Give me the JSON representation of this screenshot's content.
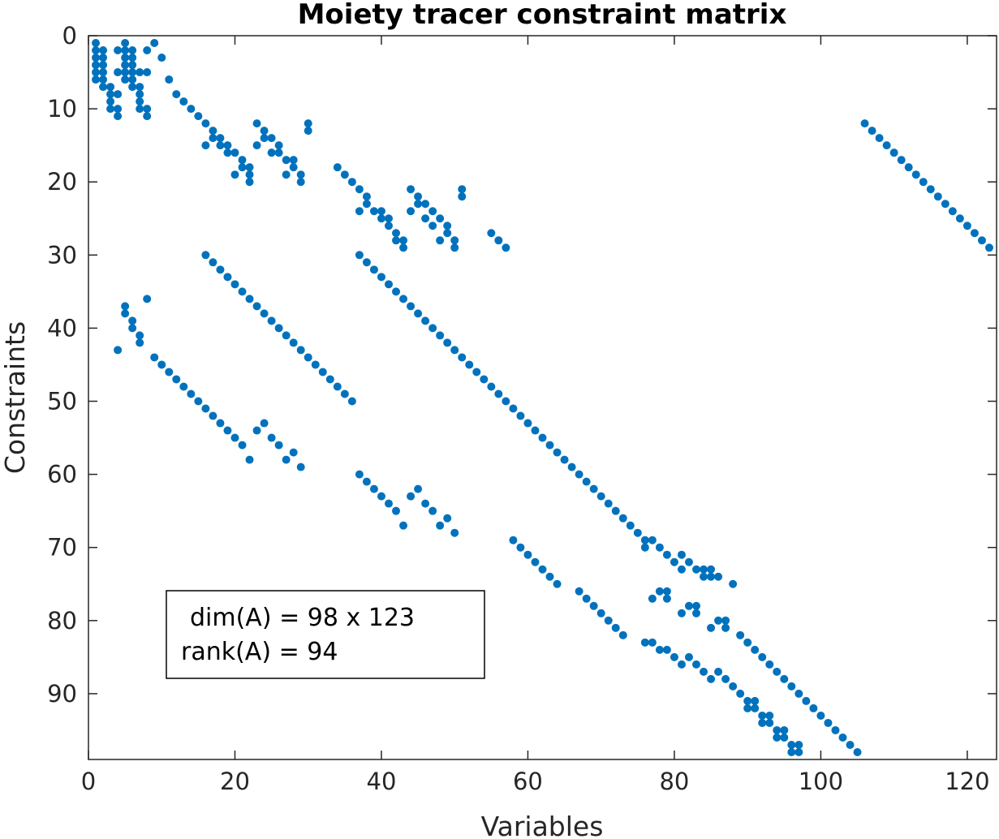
{
  "chart_data": {
    "type": "scatter",
    "subtype": "sparsity-pattern",
    "title": "Moiety tracer constraint matrix",
    "xlabel": "Variables",
    "ylabel": "Constraints",
    "xlim": [
      0,
      124
    ],
    "ylim": [
      0,
      99
    ],
    "y_reversed": true,
    "xticks": [
      0,
      20,
      40,
      60,
      80,
      100,
      120
    ],
    "yticks": [
      0,
      10,
      20,
      30,
      40,
      50,
      60,
      70,
      80,
      90
    ],
    "marker_color": "#0072bd",
    "grid": false,
    "annotation": {
      "line1": "dim(A) = 98 x 123",
      "line2": "rank(A) = 94"
    },
    "nonzeros": [
      [
        1,
        1
      ],
      [
        1,
        2
      ],
      [
        1,
        3
      ],
      [
        1,
        4
      ],
      [
        1,
        5
      ],
      [
        1,
        6
      ],
      [
        2,
        2
      ],
      [
        2,
        3
      ],
      [
        2,
        4
      ],
      [
        2,
        5
      ],
      [
        2,
        6
      ],
      [
        2,
        7
      ],
      [
        3,
        7
      ],
      [
        3,
        8
      ],
      [
        3,
        9
      ],
      [
        3,
        10
      ],
      [
        4,
        2
      ],
      [
        4,
        5
      ],
      [
        4,
        8
      ],
      [
        4,
        10
      ],
      [
        4,
        11
      ],
      [
        4,
        43
      ],
      [
        5,
        1
      ],
      [
        5,
        2
      ],
      [
        5,
        3
      ],
      [
        5,
        4
      ],
      [
        5,
        5
      ],
      [
        5,
        6
      ],
      [
        5,
        37
      ],
      [
        5,
        38
      ],
      [
        6,
        2
      ],
      [
        6,
        3
      ],
      [
        6,
        4
      ],
      [
        6,
        5
      ],
      [
        6,
        6
      ],
      [
        6,
        7
      ],
      [
        6,
        39
      ],
      [
        6,
        40
      ],
      [
        7,
        5
      ],
      [
        7,
        7
      ],
      [
        7,
        8
      ],
      [
        7,
        9
      ],
      [
        7,
        10
      ],
      [
        7,
        41
      ],
      [
        7,
        42
      ],
      [
        8,
        2
      ],
      [
        8,
        5
      ],
      [
        8,
        10
      ],
      [
        8,
        11
      ],
      [
        8,
        36
      ],
      [
        9,
        1
      ],
      [
        10,
        3
      ],
      [
        11,
        6
      ],
      [
        12,
        8
      ],
      [
        13,
        9
      ],
      [
        14,
        10
      ],
      [
        15,
        11
      ],
      [
        16,
        12
      ],
      [
        17,
        13
      ],
      [
        16,
        15
      ],
      [
        17,
        14
      ],
      [
        18,
        15
      ],
      [
        18,
        14
      ],
      [
        19,
        16
      ],
      [
        19,
        15
      ],
      [
        20,
        16
      ],
      [
        20,
        19
      ],
      [
        21,
        17
      ],
      [
        21,
        18
      ],
      [
        22,
        19
      ],
      [
        22,
        18
      ],
      [
        22,
        20
      ],
      [
        23,
        12
      ],
      [
        23,
        15
      ],
      [
        24,
        14
      ],
      [
        24,
        13
      ],
      [
        25,
        14
      ],
      [
        25,
        16
      ],
      [
        26,
        15
      ],
      [
        26,
        16
      ],
      [
        27,
        17
      ],
      [
        27,
        19
      ],
      [
        28,
        17
      ],
      [
        28,
        18
      ],
      [
        29,
        19
      ],
      [
        29,
        20
      ],
      [
        30,
        12
      ],
      [
        30,
        13
      ],
      [
        34,
        18
      ],
      [
        35,
        19
      ],
      [
        36,
        20
      ],
      [
        37,
        21
      ],
      [
        37,
        24
      ],
      [
        38,
        22
      ],
      [
        38,
        23
      ],
      [
        39,
        24
      ],
      [
        40,
        24
      ],
      [
        40,
        25
      ],
      [
        41,
        25
      ],
      [
        41,
        26
      ],
      [
        42,
        27
      ],
      [
        42,
        28
      ],
      [
        43,
        28
      ],
      [
        43,
        29
      ],
      [
        44,
        21
      ],
      [
        44,
        24
      ],
      [
        45,
        22
      ],
      [
        45,
        23
      ],
      [
        46,
        23
      ],
      [
        46,
        25
      ],
      [
        47,
        24
      ],
      [
        47,
        26
      ],
      [
        48,
        25
      ],
      [
        48,
        28
      ],
      [
        49,
        26
      ],
      [
        49,
        27
      ],
      [
        50,
        28
      ],
      [
        50,
        29
      ],
      [
        51,
        21
      ],
      [
        51,
        22
      ],
      [
        55,
        27
      ],
      [
        56,
        28
      ],
      [
        57,
        29
      ],
      [
        16,
        30
      ],
      [
        17,
        31
      ],
      [
        18,
        32
      ],
      [
        19,
        33
      ],
      [
        20,
        34
      ],
      [
        21,
        35
      ],
      [
        22,
        36
      ],
      [
        23,
        37
      ],
      [
        24,
        38
      ],
      [
        25,
        39
      ],
      [
        26,
        40
      ],
      [
        27,
        41
      ],
      [
        28,
        42
      ],
      [
        29,
        43
      ],
      [
        30,
        44
      ],
      [
        31,
        45
      ],
      [
        32,
        46
      ],
      [
        33,
        47
      ],
      [
        34,
        48
      ],
      [
        35,
        49
      ],
      [
        36,
        50
      ],
      [
        37,
        30
      ],
      [
        38,
        31
      ],
      [
        39,
        32
      ],
      [
        40,
        33
      ],
      [
        41,
        34
      ],
      [
        42,
        35
      ],
      [
        43,
        36
      ],
      [
        44,
        37
      ],
      [
        45,
        38
      ],
      [
        46,
        39
      ],
      [
        47,
        40
      ],
      [
        48,
        41
      ],
      [
        49,
        42
      ],
      [
        50,
        43
      ],
      [
        51,
        44
      ],
      [
        52,
        45
      ],
      [
        53,
        46
      ],
      [
        54,
        47
      ],
      [
        55,
        48
      ],
      [
        56,
        49
      ],
      [
        57,
        50
      ],
      [
        58,
        51
      ],
      [
        59,
        52
      ],
      [
        60,
        53
      ],
      [
        61,
        54
      ],
      [
        62,
        55
      ],
      [
        63,
        56
      ],
      [
        64,
        57
      ],
      [
        65,
        58
      ],
      [
        66,
        59
      ],
      [
        67,
        60
      ],
      [
        68,
        61
      ],
      [
        69,
        62
      ],
      [
        70,
        63
      ],
      [
        71,
        64
      ],
      [
        72,
        65
      ],
      [
        73,
        66
      ],
      [
        74,
        67
      ],
      [
        75,
        68
      ],
      [
        76,
        69
      ],
      [
        76,
        70
      ],
      [
        77,
        69
      ],
      [
        78,
        70
      ],
      [
        79,
        71
      ],
      [
        80,
        72
      ],
      [
        81,
        71
      ],
      [
        81,
        73
      ],
      [
        82,
        72
      ],
      [
        83,
        73
      ],
      [
        84,
        74
      ],
      [
        84,
        73
      ],
      [
        85,
        74
      ],
      [
        85,
        73
      ],
      [
        86,
        74
      ],
      [
        88,
        75
      ],
      [
        106,
        12
      ],
      [
        107,
        13
      ],
      [
        108,
        14
      ],
      [
        109,
        15
      ],
      [
        110,
        16
      ],
      [
        111,
        17
      ],
      [
        112,
        18
      ],
      [
        113,
        19
      ],
      [
        114,
        20
      ],
      [
        115,
        21
      ],
      [
        116,
        22
      ],
      [
        117,
        23
      ],
      [
        118,
        24
      ],
      [
        119,
        25
      ],
      [
        120,
        26
      ],
      [
        121,
        27
      ],
      [
        122,
        28
      ],
      [
        123,
        29
      ],
      [
        9,
        44
      ],
      [
        10,
        45
      ],
      [
        11,
        46
      ],
      [
        12,
        47
      ],
      [
        13,
        48
      ],
      [
        14,
        49
      ],
      [
        15,
        50
      ],
      [
        16,
        51
      ],
      [
        17,
        52
      ],
      [
        18,
        53
      ],
      [
        19,
        54
      ],
      [
        20,
        55
      ],
      [
        21,
        56
      ],
      [
        22,
        58
      ],
      [
        23,
        54
      ],
      [
        24,
        53
      ],
      [
        25,
        55
      ],
      [
        26,
        56
      ],
      [
        27,
        58
      ],
      [
        28,
        57
      ],
      [
        29,
        59
      ],
      [
        37,
        60
      ],
      [
        38,
        61
      ],
      [
        39,
        62
      ],
      [
        40,
        63
      ],
      [
        41,
        64
      ],
      [
        42,
        65
      ],
      [
        43,
        67
      ],
      [
        44,
        63
      ],
      [
        45,
        62
      ],
      [
        46,
        64
      ],
      [
        47,
        65
      ],
      [
        48,
        67
      ],
      [
        49,
        66
      ],
      [
        50,
        68
      ],
      [
        58,
        69
      ],
      [
        59,
        70
      ],
      [
        60,
        71
      ],
      [
        61,
        72
      ],
      [
        62,
        73
      ],
      [
        63,
        74
      ],
      [
        64,
        75
      ],
      [
        67,
        76
      ],
      [
        68,
        77
      ],
      [
        69,
        78
      ],
      [
        70,
        79
      ],
      [
        71,
        80
      ],
      [
        72,
        81
      ],
      [
        73,
        82
      ],
      [
        76,
        83
      ],
      [
        77,
        83
      ],
      [
        78,
        84
      ],
      [
        79,
        84
      ],
      [
        80,
        85
      ],
      [
        81,
        86
      ],
      [
        82,
        85
      ],
      [
        83,
        86
      ],
      [
        84,
        87
      ],
      [
        85,
        88
      ],
      [
        86,
        87
      ],
      [
        87,
        88
      ],
      [
        88,
        89
      ],
      [
        89,
        90
      ],
      [
        90,
        91
      ],
      [
        90,
        92
      ],
      [
        91,
        91
      ],
      [
        91,
        92
      ],
      [
        92,
        93
      ],
      [
        92,
        94
      ],
      [
        93,
        93
      ],
      [
        93,
        94
      ],
      [
        94,
        95
      ],
      [
        94,
        96
      ],
      [
        95,
        95
      ],
      [
        95,
        96
      ],
      [
        96,
        97
      ],
      [
        96,
        98
      ],
      [
        97,
        97
      ],
      [
        97,
        98
      ],
      [
        77,
        77
      ],
      [
        78,
        76
      ],
      [
        79,
        77
      ],
      [
        79,
        76
      ],
      [
        81,
        79
      ],
      [
        82,
        78
      ],
      [
        83,
        78
      ],
      [
        83,
        79
      ],
      [
        85,
        81
      ],
      [
        86,
        80
      ],
      [
        87,
        80
      ],
      [
        87,
        81
      ],
      [
        89,
        82
      ],
      [
        90,
        83
      ],
      [
        91,
        84
      ],
      [
        92,
        85
      ],
      [
        93,
        86
      ],
      [
        94,
        87
      ],
      [
        95,
        88
      ],
      [
        96,
        89
      ],
      [
        97,
        90
      ],
      [
        98,
        91
      ],
      [
        99,
        92
      ],
      [
        100,
        93
      ],
      [
        101,
        94
      ],
      [
        102,
        95
      ],
      [
        103,
        96
      ],
      [
        104,
        97
      ],
      [
        105,
        98
      ]
    ]
  }
}
